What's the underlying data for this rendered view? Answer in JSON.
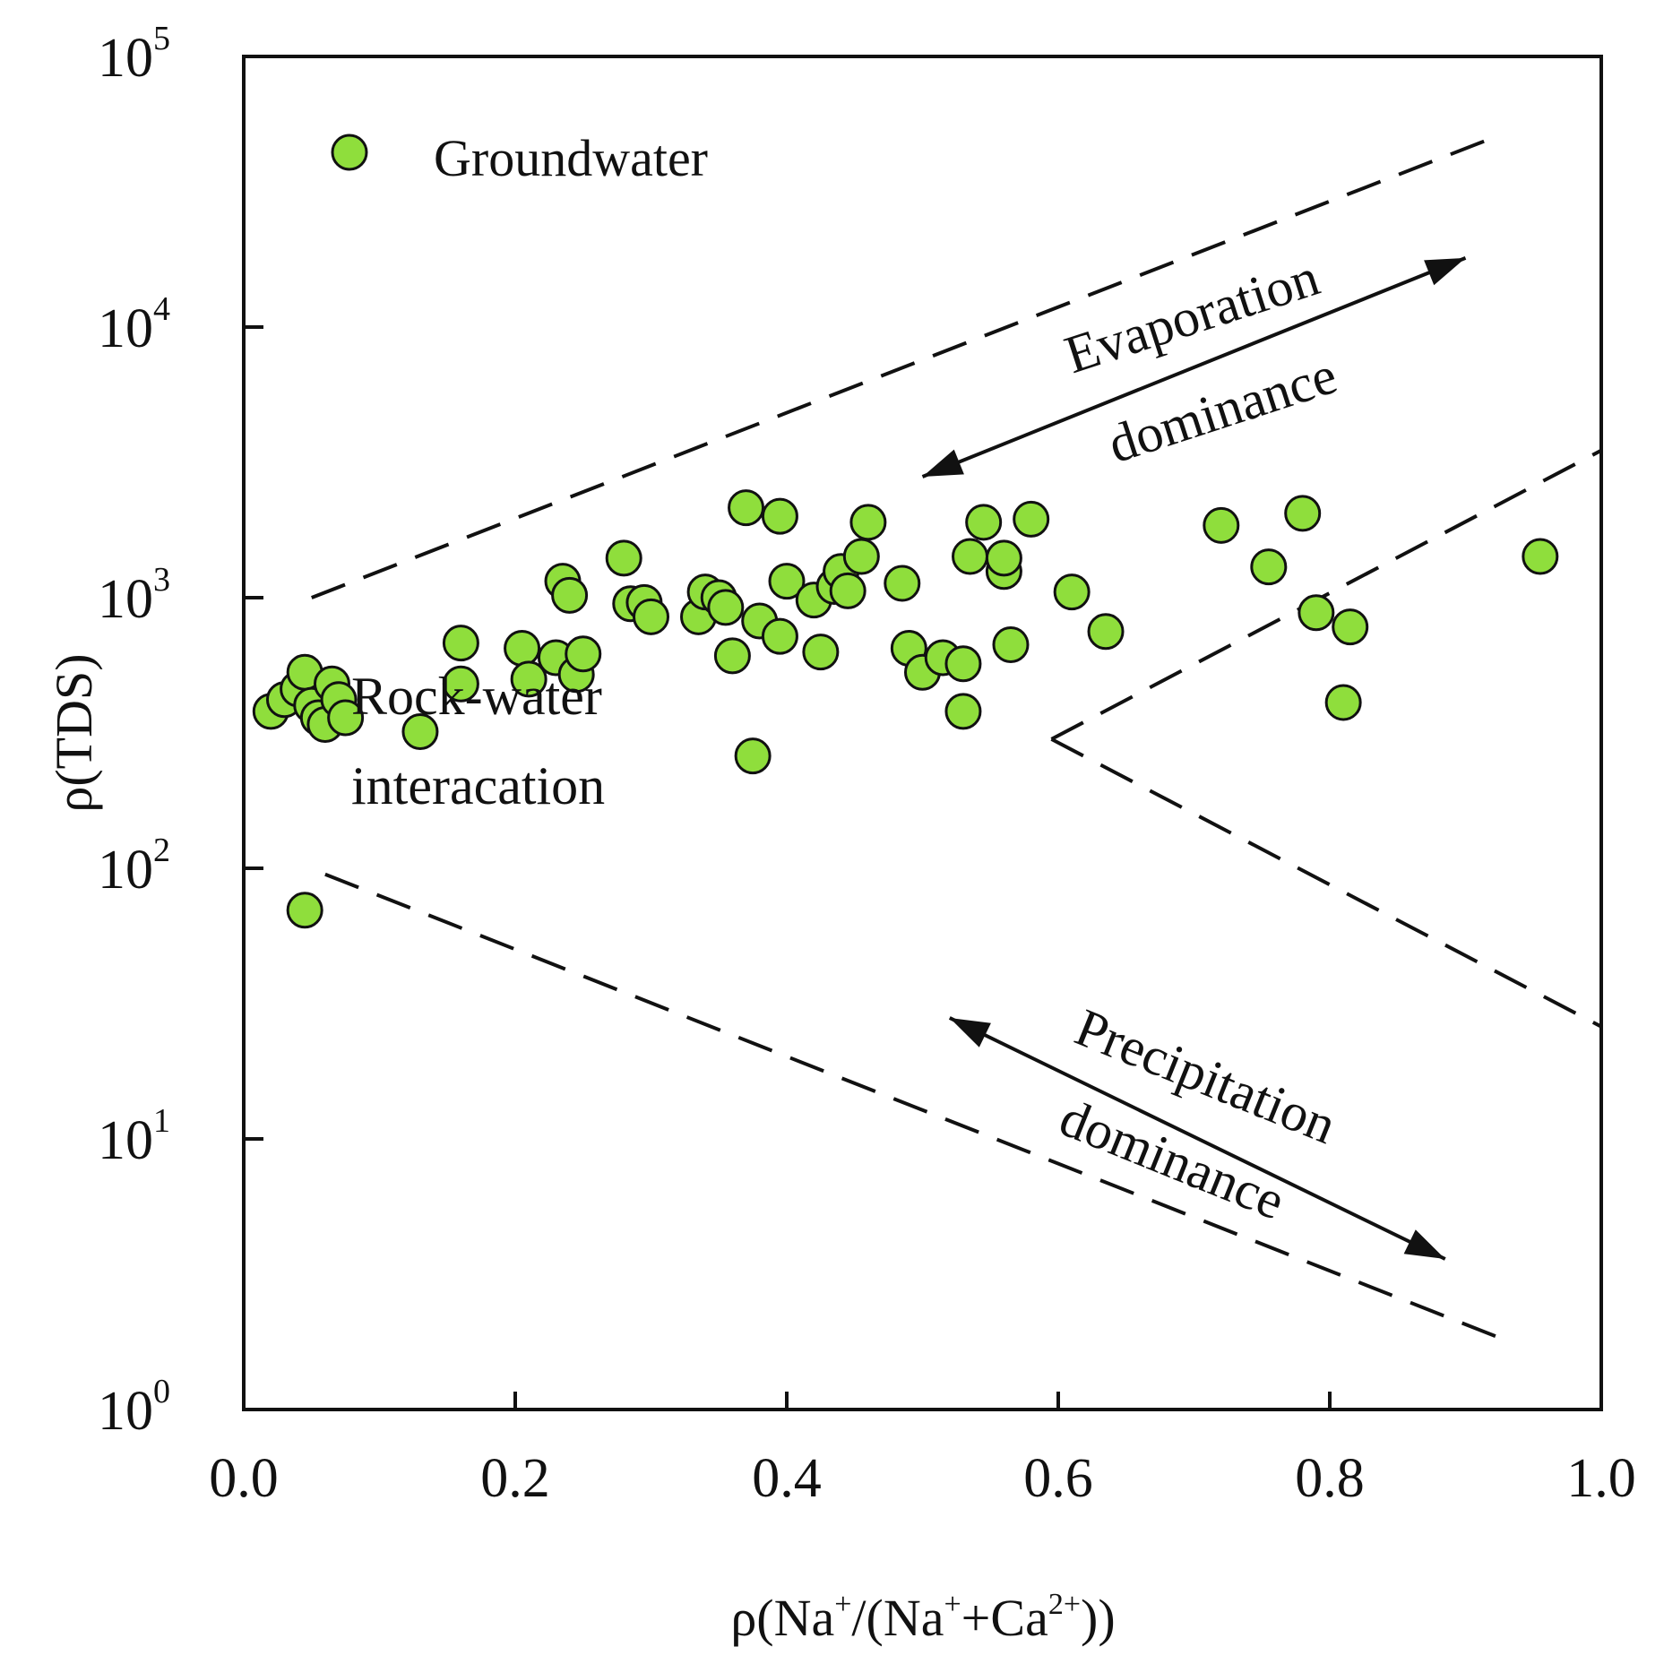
{
  "chart_data": {
    "type": "scatter",
    "title": "",
    "xlabel": {
      "prefix": "ρ(Na",
      "sup1": "+",
      "mid": "/(Na",
      "sup2": "+",
      "mid2": "+Ca",
      "sup3": "2+",
      "suffix": "))"
    },
    "ylabel": "ρ(TDS)",
    "xlim": [
      0,
      1
    ],
    "ylim": [
      1,
      100000
    ],
    "yscale": "log",
    "x_ticks": [
      "0.0",
      "0.2",
      "0.4",
      "0.6",
      "0.8",
      "1.0"
    ],
    "y_ticks": [
      {
        "base": "10",
        "exp": "0"
      },
      {
        "base": "10",
        "exp": "1"
      },
      {
        "base": "10",
        "exp": "2"
      },
      {
        "base": "10",
        "exp": "3"
      },
      {
        "base": "10",
        "exp": "4"
      },
      {
        "base": "10",
        "exp": "5"
      }
    ],
    "legend": {
      "label": "Groundwater",
      "position": "top-left"
    },
    "annotations": {
      "evaporation": [
        "Evaporation",
        "dominance"
      ],
      "rock_water": [
        "Rock-water",
        "interacation"
      ],
      "precipitation": [
        "Precipitation",
        "dominance"
      ]
    },
    "boundary_lines": [
      {
        "name": "upper",
        "points": [
          [
            0.05,
            1000
          ],
          [
            0.92,
            50000
          ]
        ]
      },
      {
        "name": "lower",
        "points": [
          [
            0.06,
            95
          ],
          [
            0.93,
            1.8
          ]
        ]
      },
      {
        "name": "right-upper",
        "points": [
          [
            0.595,
            300
          ],
          [
            1.0,
            3500
          ]
        ]
      },
      {
        "name": "right-lower",
        "points": [
          [
            0.595,
            300
          ],
          [
            1.0,
            26
          ]
        ]
      }
    ],
    "arrows": [
      {
        "name": "evaporation-arrow",
        "from": [
          0.5,
          2800
        ],
        "to": [
          0.9,
          18000
        ]
      },
      {
        "name": "precipitation-arrow",
        "from": [
          0.52,
          28
        ],
        "to": [
          0.885,
          3.6
        ]
      }
    ],
    "series": [
      {
        "name": "Groundwater",
        "color": "#8fde3c",
        "points": [
          [
            0.02,
            380
          ],
          [
            0.03,
            420
          ],
          [
            0.04,
            460
          ],
          [
            0.045,
            530
          ],
          [
            0.05,
            400
          ],
          [
            0.055,
            360
          ],
          [
            0.06,
            340
          ],
          [
            0.065,
            480
          ],
          [
            0.07,
            420
          ],
          [
            0.075,
            360
          ],
          [
            0.045,
            70
          ],
          [
            0.13,
            320
          ],
          [
            0.16,
            680
          ],
          [
            0.16,
            480
          ],
          [
            0.205,
            650
          ],
          [
            0.21,
            500
          ],
          [
            0.23,
            600
          ],
          [
            0.235,
            1150
          ],
          [
            0.24,
            1020
          ],
          [
            0.245,
            520
          ],
          [
            0.25,
            620
          ],
          [
            0.28,
            1400
          ],
          [
            0.285,
            950
          ],
          [
            0.295,
            960
          ],
          [
            0.3,
            850
          ],
          [
            0.335,
            850
          ],
          [
            0.34,
            1050
          ],
          [
            0.35,
            1000
          ],
          [
            0.355,
            920
          ],
          [
            0.36,
            610
          ],
          [
            0.37,
            2150
          ],
          [
            0.38,
            820
          ],
          [
            0.375,
            260
          ],
          [
            0.395,
            2000
          ],
          [
            0.395,
            720
          ],
          [
            0.4,
            1150
          ],
          [
            0.42,
            980
          ],
          [
            0.425,
            630
          ],
          [
            0.435,
            1100
          ],
          [
            0.44,
            1250
          ],
          [
            0.445,
            1060
          ],
          [
            0.455,
            1420
          ],
          [
            0.46,
            1900
          ],
          [
            0.485,
            1130
          ],
          [
            0.49,
            650
          ],
          [
            0.5,
            530
          ],
          [
            0.515,
            600
          ],
          [
            0.53,
            570
          ],
          [
            0.53,
            380
          ],
          [
            0.535,
            1420
          ],
          [
            0.545,
            1900
          ],
          [
            0.56,
            1250
          ],
          [
            0.56,
            1400
          ],
          [
            0.565,
            670
          ],
          [
            0.58,
            1950
          ],
          [
            0.61,
            1050
          ],
          [
            0.635,
            750
          ],
          [
            0.72,
            1850
          ],
          [
            0.755,
            1300
          ],
          [
            0.78,
            2050
          ],
          [
            0.79,
            880
          ],
          [
            0.81,
            410
          ],
          [
            0.815,
            780
          ],
          [
            0.955,
            1420
          ]
        ]
      }
    ]
  }
}
